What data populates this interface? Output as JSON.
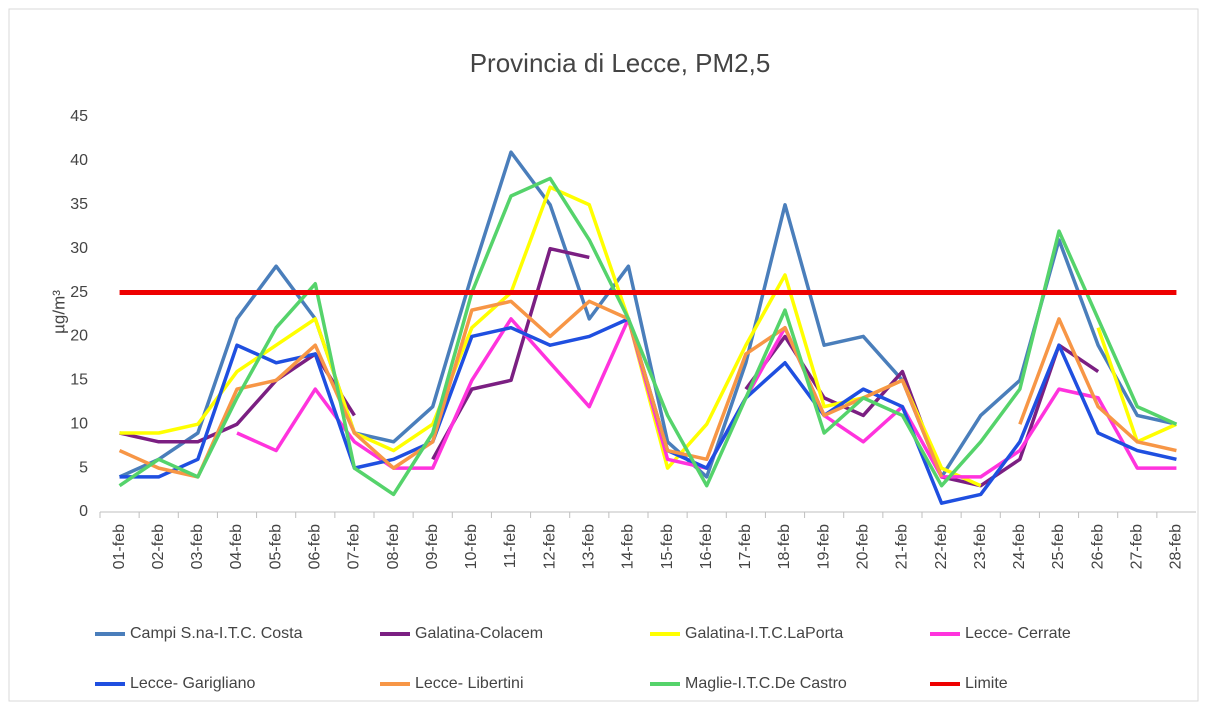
{
  "chart_data": {
    "type": "line",
    "title": "Provincia di Lecce, PM2,5",
    "ylabel": "µg/m³",
    "categories": [
      "01-feb",
      "02-feb",
      "03-feb",
      "04-feb",
      "05-feb",
      "06-feb",
      "07-feb",
      "08-feb",
      "09-feb",
      "10-feb",
      "11-feb",
      "12-feb",
      "13-feb",
      "14-feb",
      "15-feb",
      "16-feb",
      "17-feb",
      "18-feb",
      "19-feb",
      "20-feb",
      "21-feb",
      "22-feb",
      "23-feb",
      "24-feb",
      "25-feb",
      "26-feb",
      "27-feb",
      "28-feb"
    ],
    "ylim": [
      0,
      45
    ],
    "yticks": [
      0,
      5,
      10,
      15,
      20,
      25,
      30,
      35,
      40,
      45
    ],
    "grid": false,
    "series": [
      {
        "name": "Campi S.na-I.T.C. Costa",
        "color": "#4a7ebb",
        "values": [
          4,
          6,
          9,
          22,
          28,
          22,
          9,
          8,
          12,
          27,
          41,
          35,
          22,
          28,
          8,
          4,
          17,
          35,
          19,
          20,
          15,
          4,
          11,
          15,
          31,
          19,
          11,
          10
        ]
      },
      {
        "name": "Galatina-Colacem",
        "color": "#7b1f82",
        "values": [
          9,
          8,
          8,
          10,
          15,
          18,
          11,
          null,
          6,
          14,
          15,
          30,
          29,
          null,
          null,
          null,
          14,
          20,
          13,
          11,
          16,
          4,
          3,
          6,
          19,
          16,
          null,
          null
        ]
      },
      {
        "name": "Galatina-I.T.C.LaPorta",
        "color": "#ffff00",
        "values": [
          9,
          9,
          10,
          16,
          19,
          22,
          9,
          7,
          10,
          21,
          25,
          37,
          35,
          22,
          5,
          10,
          19,
          27,
          12,
          13,
          15,
          5,
          3,
          null,
          null,
          21,
          8,
          10
        ]
      },
      {
        "name": "Lecce- Cerrate",
        "color": "#ff33dd",
        "values": [
          null,
          null,
          null,
          9,
          7,
          14,
          8,
          5,
          5,
          15,
          22,
          17,
          12,
          22,
          6,
          5,
          13,
          21,
          11,
          8,
          12,
          4,
          4,
          7,
          14,
          13,
          5,
          5
        ]
      },
      {
        "name": "Lecce- Garigliano",
        "color": "#1f4fe0",
        "values": [
          4,
          4,
          6,
          19,
          17,
          18,
          5,
          6,
          8,
          20,
          21,
          19,
          20,
          22,
          7,
          5,
          13,
          17,
          11,
          14,
          12,
          1,
          2,
          8,
          19,
          9,
          7,
          6
        ]
      },
      {
        "name": "Lecce- Libertini",
        "color": "#f79646",
        "values": [
          7,
          5,
          4,
          14,
          15,
          19,
          9,
          5,
          8,
          23,
          24,
          20,
          24,
          22,
          7,
          6,
          18,
          21,
          11,
          13,
          15,
          4,
          null,
          10,
          22,
          12,
          8,
          7
        ]
      },
      {
        "name": "Maglie-I.T.C.De Castro",
        "color": "#55d36b",
        "values": [
          3,
          6,
          4,
          13,
          21,
          26,
          5,
          2,
          9,
          25,
          36,
          38,
          31,
          22,
          11,
          3,
          13,
          23,
          9,
          13,
          11,
          3,
          8,
          14,
          32,
          22,
          12,
          10
        ]
      },
      {
        "name": "Limite",
        "color": "#ee0000",
        "values": [
          25,
          25,
          25,
          25,
          25,
          25,
          25,
          25,
          25,
          25,
          25,
          25,
          25,
          25,
          25,
          25,
          25,
          25,
          25,
          25,
          25,
          25,
          25,
          25,
          25,
          25,
          25,
          25
        ]
      }
    ]
  }
}
